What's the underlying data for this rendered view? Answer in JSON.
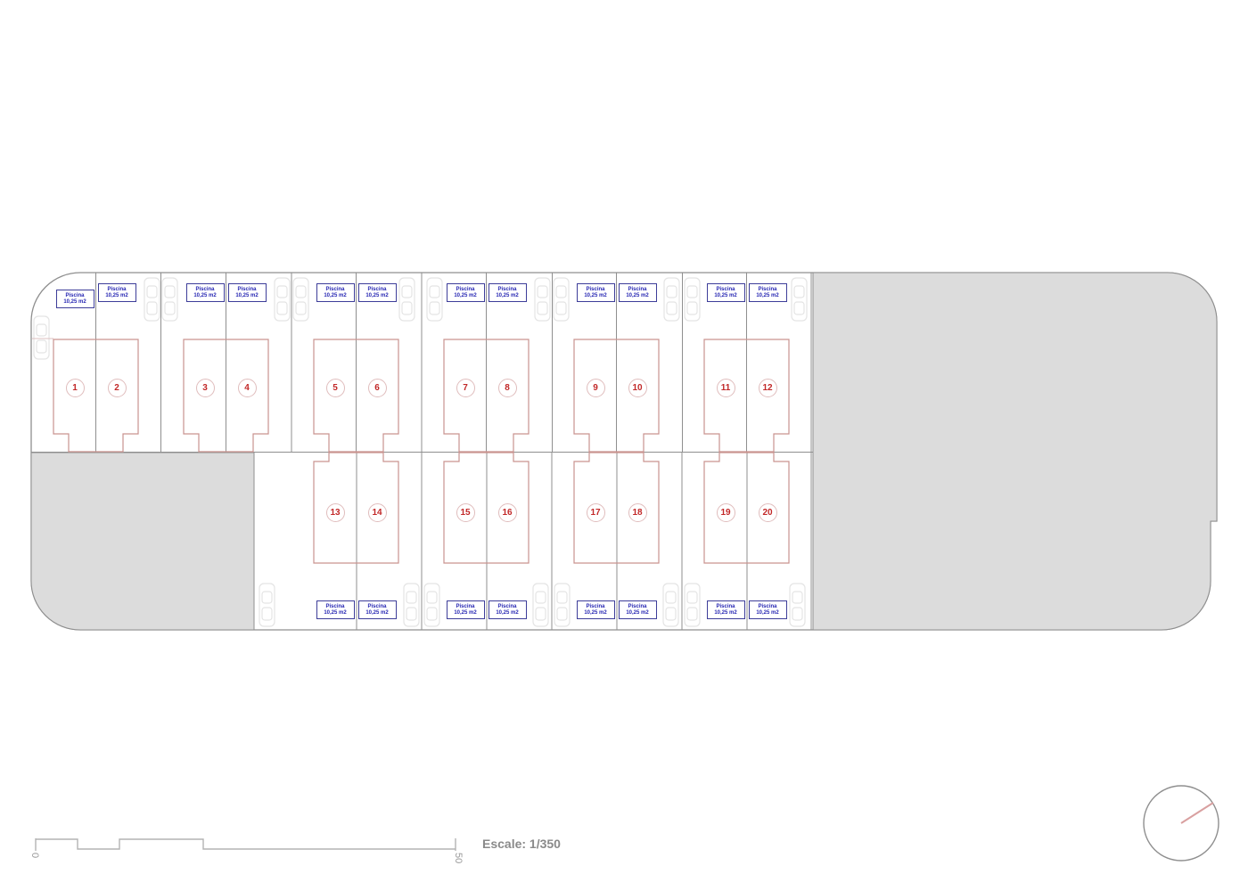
{
  "plan": {
    "scale_bar": {
      "zero_label": "0",
      "fifty_label": "50",
      "scale_text": "Escale: 1/350"
    },
    "plots": [
      {
        "number": "1",
        "pool_label": "Piscina",
        "pool_area": "10,25 m2"
      },
      {
        "number": "2",
        "pool_label": "Piscina",
        "pool_area": "10,25 m2"
      },
      {
        "number": "3",
        "pool_label": "Piscina",
        "pool_area": "10,25 m2"
      },
      {
        "number": "4",
        "pool_label": "Piscina",
        "pool_area": "10,25 m2"
      },
      {
        "number": "5",
        "pool_label": "Piscina",
        "pool_area": "10,25 m2"
      },
      {
        "number": "6",
        "pool_label": "Piscina",
        "pool_area": "10,25 m2"
      },
      {
        "number": "7",
        "pool_label": "Piscina",
        "pool_area": "10,25 m2"
      },
      {
        "number": "8",
        "pool_label": "Piscina",
        "pool_area": "10,25 m2"
      },
      {
        "number": "9",
        "pool_label": "Piscina",
        "pool_area": "10,25 m2"
      },
      {
        "number": "10",
        "pool_label": "Piscina",
        "pool_area": "10,25 m2"
      },
      {
        "number": "11",
        "pool_label": "Piscina",
        "pool_area": "10,25 m2"
      },
      {
        "number": "12",
        "pool_label": "Piscina",
        "pool_area": "10,25 m2"
      },
      {
        "number": "13",
        "pool_label": "Piscina",
        "pool_area": "10,25 m2"
      },
      {
        "number": "14",
        "pool_label": "Piscina",
        "pool_area": "10,25 m2"
      },
      {
        "number": "15",
        "pool_label": "Piscina",
        "pool_area": "10,25 m2"
      },
      {
        "number": "16",
        "pool_label": "Piscina",
        "pool_area": "10,25 m2"
      },
      {
        "number": "17",
        "pool_label": "Piscina",
        "pool_area": "10,25 m2"
      },
      {
        "number": "18",
        "pool_label": "Piscina",
        "pool_area": "10,25 m2"
      },
      {
        "number": "19",
        "pool_label": "Piscina",
        "pool_area": "10,25 m2"
      },
      {
        "number": "20",
        "pool_label": "Piscina",
        "pool_area": "10,25 m2"
      }
    ],
    "colors": {
      "line_gray": "#8f8f8f",
      "area_gray_fill": "#dcdcdc",
      "footprint_red": "#c9938f",
      "number_red": "#c22828",
      "pool_navy": "#3d3d99",
      "car_gray": "#e4e4e4",
      "scalebar_gray": "#b3b3b3",
      "compass_needle": "#d9a0a0"
    }
  }
}
